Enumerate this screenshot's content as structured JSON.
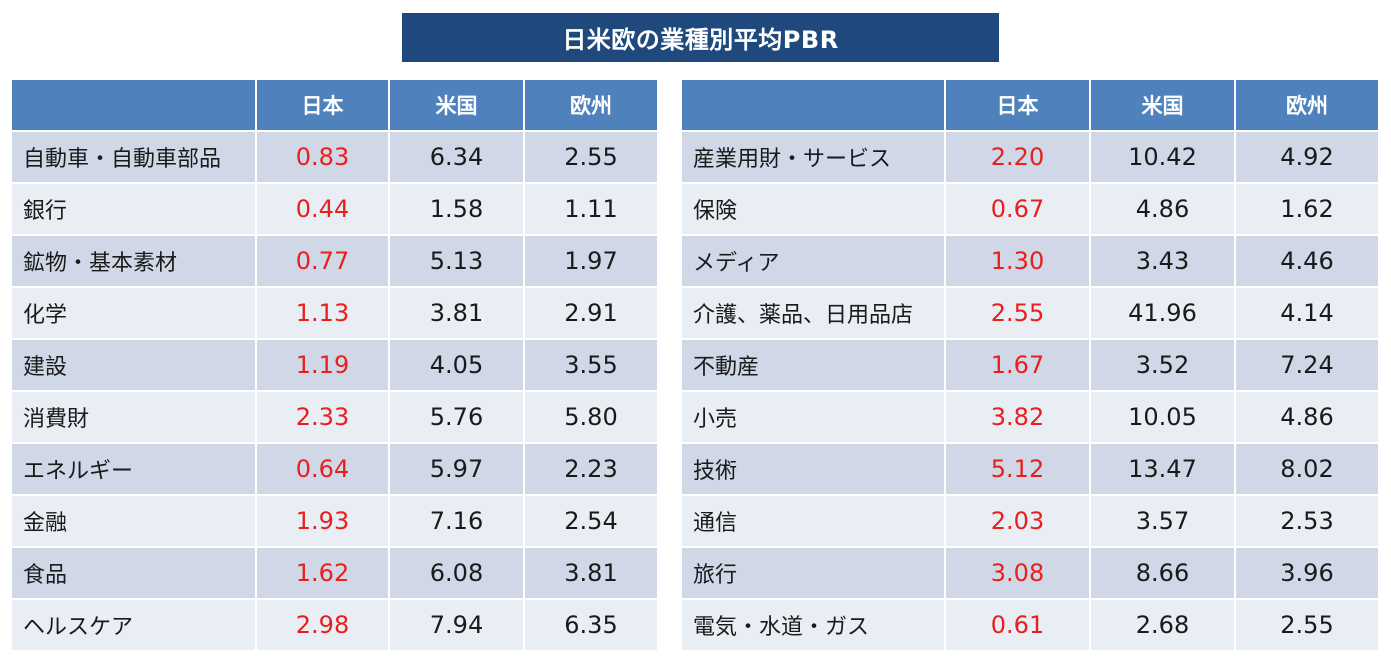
{
  "title": "日米欧の業種別平均PBR",
  "headers": {
    "sector": "",
    "japan": "日本",
    "us": "米国",
    "europe": "欧州"
  },
  "colors": {
    "title_bg": "#1f497d",
    "header_bg": "#4f81bd",
    "row_odd": "#d0d8e8",
    "row_even": "#e9edf4",
    "japan_value": "#e8201c"
  },
  "chart_data": {
    "type": "table",
    "title": "日米欧の業種別平均PBR",
    "columns": [
      "",
      "日本",
      "米国",
      "欧州"
    ],
    "left_table": [
      {
        "sector": "自動車・自動車部品",
        "japan": "0.83",
        "us": "6.34",
        "europe": "2.55"
      },
      {
        "sector": "銀行",
        "japan": "0.44",
        "us": "1.58",
        "europe": "1.11"
      },
      {
        "sector": "鉱物・基本素材",
        "japan": "0.77",
        "us": "5.13",
        "europe": "1.97"
      },
      {
        "sector": "化学",
        "japan": "1.13",
        "us": "3.81",
        "europe": "2.91"
      },
      {
        "sector": "建設",
        "japan": "1.19",
        "us": "4.05",
        "europe": "3.55"
      },
      {
        "sector": "消費財",
        "japan": "2.33",
        "us": "5.76",
        "europe": "5.80"
      },
      {
        "sector": "エネルギー",
        "japan": "0.64",
        "us": "5.97",
        "europe": "2.23"
      },
      {
        "sector": "金融",
        "japan": "1.93",
        "us": "7.16",
        "europe": "2.54"
      },
      {
        "sector": "食品",
        "japan": "1.62",
        "us": "6.08",
        "europe": "3.81"
      },
      {
        "sector": "ヘルスケア",
        "japan": "2.98",
        "us": "7.94",
        "europe": "6.35"
      }
    ],
    "right_table": [
      {
        "sector": "産業用財・サービス",
        "japan": "2.20",
        "us": "10.42",
        "europe": "4.92"
      },
      {
        "sector": "保険",
        "japan": "0.67",
        "us": "4.86",
        "europe": "1.62"
      },
      {
        "sector": "メディア",
        "japan": "1.30",
        "us": "3.43",
        "europe": "4.46"
      },
      {
        "sector": "介護、薬品、日用品店",
        "japan": "2.55",
        "us": "41.96",
        "europe": "4.14"
      },
      {
        "sector": "不動産",
        "japan": "1.67",
        "us": "3.52",
        "europe": "7.24"
      },
      {
        "sector": "小売",
        "japan": "3.82",
        "us": "10.05",
        "europe": "4.86"
      },
      {
        "sector": "技術",
        "japan": "5.12",
        "us": "13.47",
        "europe": "8.02"
      },
      {
        "sector": "通信",
        "japan": "2.03",
        "us": "3.57",
        "europe": "2.53"
      },
      {
        "sector": "旅行",
        "japan": "3.08",
        "us": "8.66",
        "europe": "3.96"
      },
      {
        "sector": "電気・水道・ガス",
        "japan": "0.61",
        "us": "2.68",
        "europe": "2.55"
      }
    ]
  }
}
